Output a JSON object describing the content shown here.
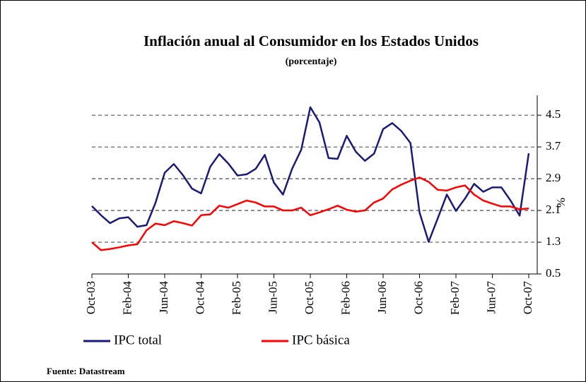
{
  "chart_data": {
    "type": "line",
    "title": "Inflación anual al Consumidor en los Estados Unidos",
    "subtitle": "(porcentaje)",
    "y_label": "%",
    "source": "Fuente: Datastream",
    "categories": [
      "Oct-03",
      null,
      null,
      null,
      "Feb-04",
      null,
      null,
      null,
      "Jun-04",
      null,
      null,
      null,
      "Oct-04",
      null,
      null,
      null,
      "Feb-05",
      null,
      null,
      null,
      "Jun-05",
      null,
      null,
      null,
      "Oct-05",
      null,
      null,
      null,
      "Feb-06",
      null,
      null,
      null,
      "Jun-06",
      null,
      null,
      null,
      "Oct-06",
      null,
      null,
      null,
      "Feb-07",
      null,
      null,
      null,
      "Jun-07",
      null,
      null,
      null,
      "Oct-07"
    ],
    "series": [
      {
        "name": "IPC total",
        "color": "#1a1a7a",
        "values": [
          2.21,
          1.98,
          1.78,
          1.9,
          1.93,
          1.69,
          1.73,
          2.3,
          3.05,
          3.27,
          2.99,
          2.65,
          2.53,
          3.2,
          3.52,
          3.28,
          2.98,
          3.01,
          3.15,
          3.5,
          2.8,
          2.5,
          3.15,
          3.63,
          4.7,
          4.32,
          3.42,
          3.4,
          3.98,
          3.58,
          3.35,
          3.53,
          4.15,
          4.3,
          4.1,
          3.8,
          2.05,
          1.31,
          1.9,
          2.5,
          2.09,
          2.4,
          2.77,
          2.57,
          2.68,
          2.68,
          2.35,
          1.97,
          3.54
        ]
      },
      {
        "name": "IPC básica",
        "color": "#ff0000",
        "values": [
          1.3,
          1.1,
          1.13,
          1.17,
          1.22,
          1.25,
          1.6,
          1.77,
          1.73,
          1.83,
          1.78,
          1.72,
          1.98,
          2.0,
          2.22,
          2.17,
          2.26,
          2.35,
          2.3,
          2.2,
          2.2,
          2.1,
          2.1,
          2.17,
          1.98,
          2.05,
          2.13,
          2.22,
          2.12,
          2.07,
          2.1,
          2.3,
          2.4,
          2.63,
          2.75,
          2.85,
          2.93,
          2.82,
          2.62,
          2.6,
          2.68,
          2.73,
          2.5,
          2.35,
          2.27,
          2.2,
          2.2,
          2.13,
          2.15
        ]
      }
    ],
    "ylim": [
      0.5,
      5.0
    ],
    "yticks": [
      0.5,
      1.3,
      2.1,
      2.9,
      3.7,
      4.5
    ],
    "grid": true
  }
}
